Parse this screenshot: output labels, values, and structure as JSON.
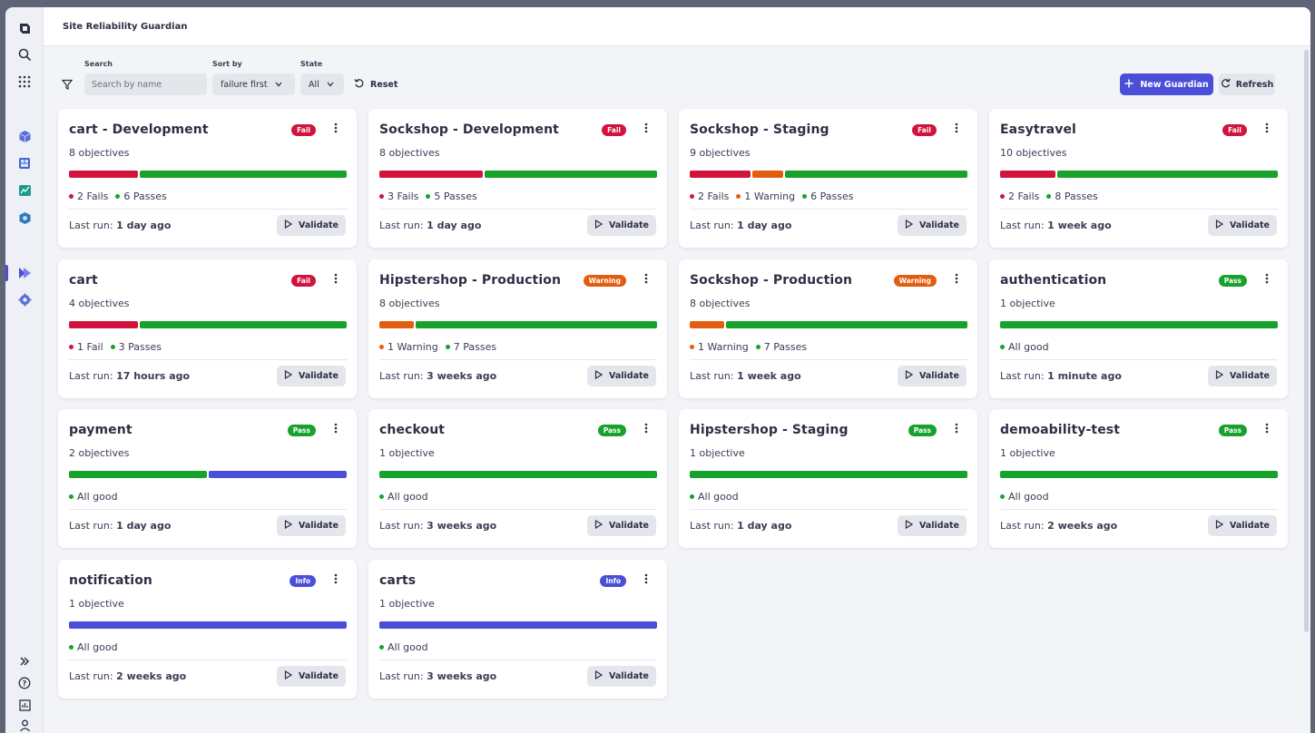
{
  "app": {
    "title": "Site Reliability Guardian"
  },
  "rail": {
    "top_icons": [
      "logo-icon",
      "search-icon",
      "apps-grid-icon"
    ],
    "app_icons": [
      "cube-icon",
      "dashboard-icon",
      "chart-icon",
      "settings-cube-icon"
    ],
    "mid_icons": [
      "guardian-icon",
      "gear-icon"
    ],
    "bottom_icons": [
      "expand-icon",
      "help-icon",
      "report-icon",
      "user-icon"
    ]
  },
  "toolbar": {
    "search_label": "Search",
    "search_placeholder": "Search by name",
    "sort_label": "Sort by",
    "sort_value": "failure first",
    "state_label": "State",
    "state_value": "All",
    "reset_label": "Reset",
    "new_label": "New Guardian",
    "refresh_label": "Refresh"
  },
  "colors": {
    "fail": "#d1133d",
    "warning": "#e35d0f",
    "pass": "#17a22b",
    "info": "#4b4fd8"
  },
  "validate_label": "Validate",
  "last_run_prefix": "Last run:",
  "cards": [
    {
      "title": "cart - Development",
      "badge": "Fail",
      "status": "fail",
      "objectives": "8 objectives",
      "bar": [
        {
          "color": "fail",
          "value": 2
        },
        {
          "color": "pass",
          "value": 6
        }
      ],
      "legend": [
        {
          "color": "fail",
          "text": "2 Fails"
        },
        {
          "color": "pass",
          "text": "6 Passes"
        }
      ],
      "last_run": "1 day ago"
    },
    {
      "title": "Sockshop - Development",
      "badge": "Fail",
      "status": "fail",
      "objectives": "8 objectives",
      "bar": [
        {
          "color": "fail",
          "value": 3
        },
        {
          "color": "pass",
          "value": 5
        }
      ],
      "legend": [
        {
          "color": "fail",
          "text": "3 Fails"
        },
        {
          "color": "pass",
          "text": "5 Passes"
        }
      ],
      "last_run": "1 day ago"
    },
    {
      "title": "Sockshop - Staging",
      "badge": "Fail",
      "status": "fail",
      "objectives": "9 objectives",
      "bar": [
        {
          "color": "fail",
          "value": 2
        },
        {
          "color": "warning",
          "value": 1
        },
        {
          "color": "pass",
          "value": 6
        }
      ],
      "legend": [
        {
          "color": "fail",
          "text": "2 Fails"
        },
        {
          "color": "warning",
          "text": "1 Warning"
        },
        {
          "color": "pass",
          "text": "6 Passes"
        }
      ],
      "last_run": "1 day ago"
    },
    {
      "title": "Easytravel",
      "badge": "Fail",
      "status": "fail",
      "objectives": "10 objectives",
      "bar": [
        {
          "color": "fail",
          "value": 2
        },
        {
          "color": "pass",
          "value": 8
        }
      ],
      "legend": [
        {
          "color": "fail",
          "text": "2 Fails"
        },
        {
          "color": "pass",
          "text": "8 Passes"
        }
      ],
      "last_run": "1 week ago"
    },
    {
      "title": "cart",
      "badge": "Fail",
      "status": "fail",
      "objectives": "4 objectives",
      "bar": [
        {
          "color": "fail",
          "value": 1
        },
        {
          "color": "pass",
          "value": 3
        }
      ],
      "legend": [
        {
          "color": "fail",
          "text": "1 Fail"
        },
        {
          "color": "pass",
          "text": "3 Passes"
        }
      ],
      "last_run": "17 hours ago"
    },
    {
      "title": "Hipstershop - Production",
      "badge": "Warning",
      "status": "warning",
      "objectives": "8 objectives",
      "bar": [
        {
          "color": "warning",
          "value": 1
        },
        {
          "color": "pass",
          "value": 7
        }
      ],
      "legend": [
        {
          "color": "warning",
          "text": "1 Warning"
        },
        {
          "color": "pass",
          "text": "7 Passes"
        }
      ],
      "last_run": "3 weeks ago"
    },
    {
      "title": "Sockshop - Production",
      "badge": "Warning",
      "status": "warning",
      "objectives": "8 objectives",
      "bar": [
        {
          "color": "warning",
          "value": 1
        },
        {
          "color": "pass",
          "value": 7
        }
      ],
      "legend": [
        {
          "color": "warning",
          "text": "1 Warning"
        },
        {
          "color": "pass",
          "text": "7 Passes"
        }
      ],
      "last_run": "1 week ago"
    },
    {
      "title": "authentication",
      "badge": "Pass",
      "status": "pass",
      "objectives": "1 objective",
      "bar": [
        {
          "color": "pass",
          "value": 1
        }
      ],
      "legend": [
        {
          "color": "pass",
          "text": "All good"
        }
      ],
      "last_run": "1 minute ago"
    },
    {
      "title": "payment",
      "badge": "Pass",
      "status": "pass",
      "objectives": "2 objectives",
      "bar": [
        {
          "color": "pass",
          "value": 1
        },
        {
          "color": "info",
          "value": 1
        }
      ],
      "legend": [
        {
          "color": "pass",
          "text": "All good"
        }
      ],
      "last_run": "1 day ago"
    },
    {
      "title": "checkout",
      "badge": "Pass",
      "status": "pass",
      "objectives": "1 objective",
      "bar": [
        {
          "color": "pass",
          "value": 1
        }
      ],
      "legend": [
        {
          "color": "pass",
          "text": "All good"
        }
      ],
      "last_run": "3 weeks ago"
    },
    {
      "title": "Hipstershop - Staging",
      "badge": "Pass",
      "status": "pass",
      "objectives": "1 objective",
      "bar": [
        {
          "color": "pass",
          "value": 1
        }
      ],
      "legend": [
        {
          "color": "pass",
          "text": "All good"
        }
      ],
      "last_run": "1 day ago"
    },
    {
      "title": "demoability-test",
      "badge": "Pass",
      "status": "pass",
      "objectives": "1 objective",
      "bar": [
        {
          "color": "pass",
          "value": 1
        }
      ],
      "legend": [
        {
          "color": "pass",
          "text": "All good"
        }
      ],
      "last_run": "2 weeks ago"
    },
    {
      "title": "notification",
      "badge": "Info",
      "status": "info",
      "objectives": "1 objective",
      "bar": [
        {
          "color": "info",
          "value": 1
        }
      ],
      "legend": [
        {
          "color": "pass",
          "text": "All good"
        }
      ],
      "last_run": "2 weeks ago"
    },
    {
      "title": "carts",
      "badge": "Info",
      "status": "info",
      "objectives": "1 objective",
      "bar": [
        {
          "color": "info",
          "value": 1
        }
      ],
      "legend": [
        {
          "color": "pass",
          "text": "All good"
        }
      ],
      "last_run": "3 weeks ago"
    }
  ]
}
